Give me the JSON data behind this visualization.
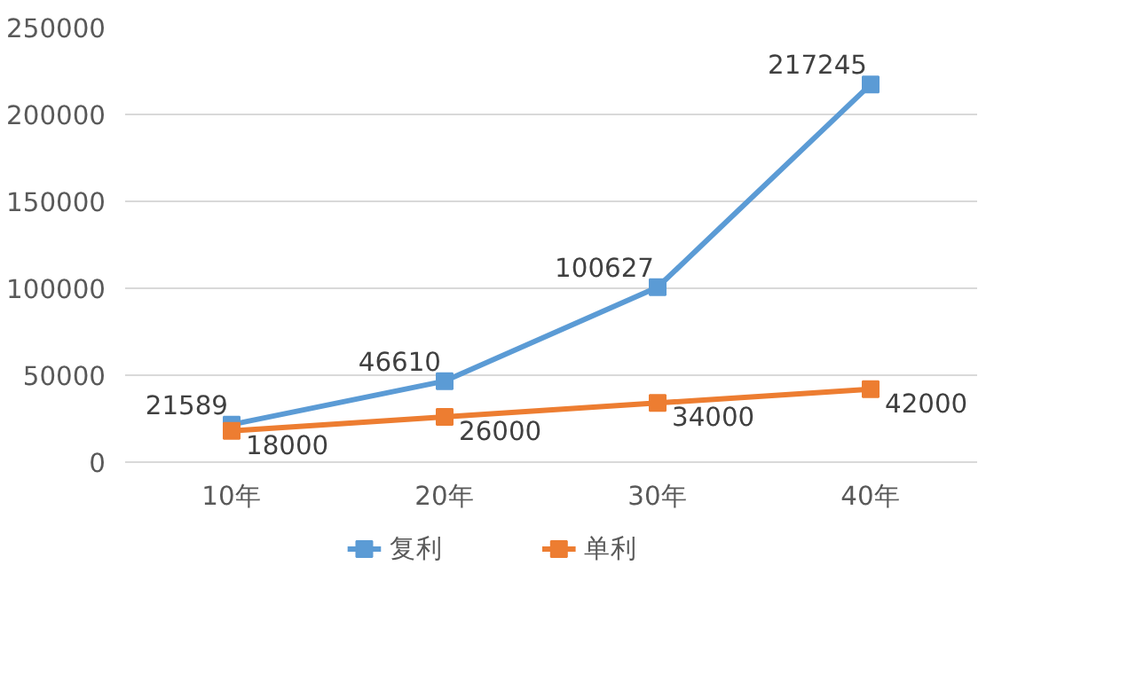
{
  "chart_data": {
    "type": "line",
    "categories": [
      "10年",
      "20年",
      "30年",
      "40年"
    ],
    "series": [
      {
        "name": "复利",
        "color": "#5b9bd5",
        "values": [
          21589,
          46610,
          100627,
          217245
        ]
      },
      {
        "name": "单利",
        "color": "#ed7d31",
        "values": [
          18000,
          26000,
          34000,
          42000
        ]
      }
    ],
    "ylim": [
      0,
      250000
    ],
    "yticks": [
      0,
      50000,
      100000,
      150000,
      200000,
      250000
    ],
    "grid": "y",
    "legend": "bottom",
    "marker": "square",
    "line_style": "solid",
    "data_labels": true
  }
}
